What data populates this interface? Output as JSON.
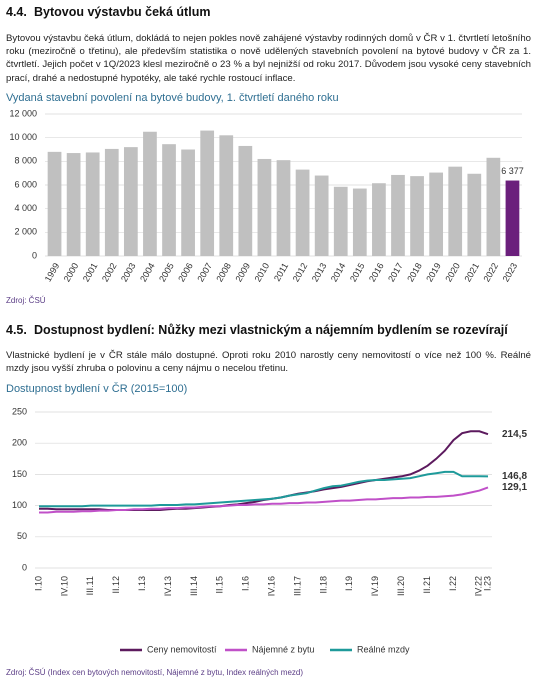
{
  "sections": [
    {
      "number": "4.4.",
      "heading": "Bytovou výstavbu čeká útlum",
      "text": "Bytovou výstavbu čeká útlum, dokládá to nejen pokles nově zahájené výstavby rodinných domů v ČR v 1. čtvrtletí letošního roku (meziročně o třetinu), ale především statistika o nově udělených stavebních povolení na bytové budovy v ČR za 1. čtvrtletí. Jejich počet v 1Q/2023 klesl meziročně o 23 % a byl nejnižší od roku 2017. Důvodem jsou vysoké ceny stavebních prací, drahé a nedostupné hypotéky, ale také rychle rostoucí inflace.",
      "source": "Zdroj: ČSÚ"
    },
    {
      "number": "4.5.",
      "heading": "Dostupnost bydlení: Nůžky mezi vlastnickým a nájemním bydlením se rozevírají",
      "text": "Vlastnické bydlení je v ČR stále málo dostupné. Oproti roku 2010 narostly ceny nemovitostí o více než 100 %. Reálné mzdy jsou vyšší zhruba o polovinu a ceny nájmu o necelou třetinu.",
      "source": "Zdroj: ČSÚ (Index cen bytových nemovitostí, Nájemné z bytu, Index reálných mezd)"
    }
  ],
  "chart_data": [
    {
      "type": "bar",
      "title": "Vydaná stavební povolení na bytové budovy, 1. čtvrtletí daného roku",
      "categories": [
        "1999",
        "2000",
        "2001",
        "2002",
        "2003",
        "2004",
        "2005",
        "2006",
        "2007",
        "2008",
        "2009",
        "2010",
        "2011",
        "2012",
        "2013",
        "2014",
        "2015",
        "2016",
        "2017",
        "2018",
        "2019",
        "2020",
        "2021",
        "2022",
        "2023"
      ],
      "values": [
        8800,
        8700,
        8750,
        9050,
        9200,
        10500,
        9450,
        9000,
        10600,
        10200,
        9300,
        8200,
        8100,
        7300,
        6800,
        5850,
        5700,
        6150,
        6850,
        6750,
        7050,
        7550,
        6950,
        8300,
        6377
      ],
      "value_labels": [
        null,
        null,
        null,
        null,
        null,
        null,
        null,
        null,
        null,
        null,
        null,
        null,
        null,
        null,
        null,
        null,
        null,
        null,
        null,
        null,
        null,
        null,
        null,
        null,
        "6 377"
      ],
      "colors": [
        "#c0c0c0",
        "#c0c0c0",
        "#c0c0c0",
        "#c0c0c0",
        "#c0c0c0",
        "#c0c0c0",
        "#c0c0c0",
        "#c0c0c0",
        "#c0c0c0",
        "#c0c0c0",
        "#c0c0c0",
        "#c0c0c0",
        "#c0c0c0",
        "#c0c0c0",
        "#c0c0c0",
        "#c0c0c0",
        "#c0c0c0",
        "#c0c0c0",
        "#c0c0c0",
        "#c0c0c0",
        "#c0c0c0",
        "#c0c0c0",
        "#c0c0c0",
        "#c0c0c0",
        "#6b1f7c"
      ],
      "ylim": [
        0,
        12000
      ],
      "yticks": [
        0,
        {
          "value": 2000,
          "label": "2 000"
        },
        {
          "value": 4000,
          "label": "4 000"
        },
        {
          "value": 6000,
          "label": "6 000"
        },
        {
          "value": 8000,
          "label": "8 000"
        },
        {
          "value": 10000,
          "label": "10 000"
        },
        {
          "value": 12000,
          "label": "12 000"
        }
      ],
      "grid": true
    },
    {
      "type": "line",
      "title": "Dostupnost bydlení v ČR (2015=100)",
      "categories": [
        "I.10",
        null,
        null,
        "IV.10",
        null,
        null,
        "III.11",
        null,
        null,
        "II.12",
        null,
        null,
        "I.13",
        null,
        null,
        "IV.13",
        null,
        null,
        "III.14",
        null,
        null,
        "II.15",
        null,
        null,
        "I.16",
        null,
        null,
        "IV.16",
        null,
        null,
        "III.17",
        null,
        null,
        "II.18",
        null,
        null,
        "I.19",
        null,
        null,
        "IV.19",
        null,
        null,
        "III.20",
        null,
        null,
        "II.21",
        null,
        null,
        "I.22",
        null,
        null,
        "IV.22",
        "I.23"
      ],
      "series": [
        {
          "name": "Ceny nemovitostí",
          "color": "#5c1a5e",
          "values": [
            95,
            95,
            94,
            94,
            94,
            94,
            94,
            94,
            93,
            93,
            93,
            93,
            93,
            93,
            93,
            94,
            95,
            95,
            96,
            97,
            98,
            99,
            101,
            102,
            104,
            106,
            109,
            111,
            113,
            116,
            119,
            121,
            123,
            126,
            128,
            130,
            133,
            136,
            139,
            141,
            143,
            145,
            147,
            150,
            156,
            164,
            175,
            188,
            205,
            216,
            219,
            219,
            214.5
          ],
          "value_labels": [
            null,
            null,
            null,
            null,
            null,
            null,
            null,
            null,
            null,
            null,
            null,
            null,
            null,
            null,
            null,
            null,
            null,
            null,
            null,
            null,
            null,
            null,
            null,
            null,
            null,
            null,
            null,
            null,
            null,
            null,
            null,
            null,
            null,
            null,
            null,
            null,
            null,
            null,
            null,
            null,
            null,
            null,
            null,
            null,
            null,
            null,
            null,
            null,
            null,
            null,
            null,
            null,
            "214,5"
          ]
        },
        {
          "name": "Nájemné z bytu",
          "color": "#c050c8",
          "values": [
            89,
            89,
            90,
            90,
            90,
            91,
            91,
            92,
            92,
            93,
            93,
            94,
            94,
            95,
            95,
            96,
            96,
            97,
            97,
            98,
            99,
            99,
            100,
            101,
            101,
            102,
            102,
            103,
            103,
            104,
            104,
            105,
            105,
            106,
            107,
            108,
            108,
            109,
            110,
            110,
            111,
            112,
            112,
            113,
            113,
            114,
            114,
            115,
            116,
            118,
            121,
            124,
            129.1
          ],
          "value_labels": [
            null,
            null,
            null,
            null,
            null,
            null,
            null,
            null,
            null,
            null,
            null,
            null,
            null,
            null,
            null,
            null,
            null,
            null,
            null,
            null,
            null,
            null,
            null,
            null,
            null,
            null,
            null,
            null,
            null,
            null,
            null,
            null,
            null,
            null,
            null,
            null,
            null,
            null,
            null,
            null,
            null,
            null,
            null,
            null,
            null,
            null,
            null,
            null,
            null,
            null,
            null,
            null,
            "129,1"
          ]
        },
        {
          "name": "Reálné mzdy",
          "color": "#1e9a9a",
          "values": [
            99,
            99,
            99,
            99,
            99,
            99,
            100,
            100,
            100,
            100,
            100,
            100,
            100,
            100,
            101,
            101,
            101,
            102,
            102,
            103,
            104,
            105,
            106,
            107,
            108,
            109,
            110,
            111,
            113,
            116,
            118,
            120,
            124,
            128,
            131,
            132,
            135,
            138,
            140,
            141,
            141,
            142,
            143,
            144,
            147,
            150,
            152,
            154,
            154,
            147,
            147,
            147,
            146.8
          ],
          "value_labels": [
            null,
            null,
            null,
            null,
            null,
            null,
            null,
            null,
            null,
            null,
            null,
            null,
            null,
            null,
            null,
            null,
            null,
            null,
            null,
            null,
            null,
            null,
            null,
            null,
            null,
            null,
            null,
            null,
            null,
            null,
            null,
            null,
            null,
            null,
            null,
            null,
            null,
            null,
            null,
            null,
            null,
            null,
            null,
            null,
            null,
            null,
            null,
            null,
            null,
            null,
            null,
            null,
            "146,8"
          ]
        }
      ],
      "ylim": [
        0,
        250
      ],
      "yticks": [
        0,
        50,
        100,
        150,
        200,
        250
      ],
      "grid": true,
      "legend": "bottom"
    }
  ]
}
